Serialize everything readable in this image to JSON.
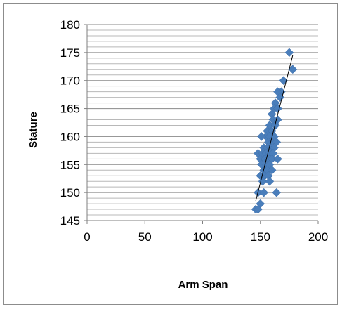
{
  "chart_data": {
    "type": "scatter",
    "title": "",
    "xlabel": "Arm Span",
    "ylabel": "Stature",
    "xlim": [
      0,
      200
    ],
    "ylim": [
      145,
      180
    ],
    "x_ticks": [
      0,
      50,
      100,
      150,
      200
    ],
    "y_ticks": [
      145,
      150,
      155,
      160,
      165,
      170,
      175,
      180
    ],
    "y_minor_step": 1,
    "grid": "horizontal",
    "legend": "none",
    "marker": "diamond",
    "marker_color": "#4a7ebb",
    "trendline_color": "#000000",
    "trendline": {
      "x": [
        146,
        178
      ],
      "y": [
        148.5,
        174.5
      ]
    },
    "series": [
      {
        "points": [
          [
            175,
            175
          ],
          [
            178,
            172
          ],
          [
            170,
            170
          ],
          [
            168,
            168
          ],
          [
            165,
            168
          ],
          [
            167,
            167
          ],
          [
            163,
            166
          ],
          [
            162,
            165
          ],
          [
            165,
            165
          ],
          [
            160,
            164
          ],
          [
            161,
            163
          ],
          [
            165,
            163
          ],
          [
            158,
            162
          ],
          [
            163,
            162
          ],
          [
            156,
            161
          ],
          [
            160,
            161
          ],
          [
            155,
            160
          ],
          [
            151,
            160
          ],
          [
            158,
            160
          ],
          [
            162,
            160
          ],
          [
            157,
            159
          ],
          [
            160,
            159
          ],
          [
            164,
            159
          ],
          [
            153,
            158
          ],
          [
            156,
            158
          ],
          [
            159,
            158
          ],
          [
            162,
            158
          ],
          [
            148,
            157
          ],
          [
            152,
            157
          ],
          [
            155,
            157
          ],
          [
            158,
            157
          ],
          [
            161,
            157
          ],
          [
            150,
            156
          ],
          [
            154,
            156
          ],
          [
            157,
            156
          ],
          [
            160,
            156
          ],
          [
            165,
            156
          ],
          [
            151,
            155
          ],
          [
            155,
            155
          ],
          [
            158,
            155
          ],
          [
            153,
            154
          ],
          [
            156,
            154
          ],
          [
            160,
            154
          ],
          [
            150,
            153
          ],
          [
            154,
            153
          ],
          [
            157,
            153
          ],
          [
            152,
            152
          ],
          [
            158,
            152
          ],
          [
            148,
            150
          ],
          [
            153,
            150
          ],
          [
            164,
            150
          ],
          [
            150,
            148
          ],
          [
            146,
            147
          ],
          [
            148,
            147
          ]
        ]
      }
    ]
  }
}
